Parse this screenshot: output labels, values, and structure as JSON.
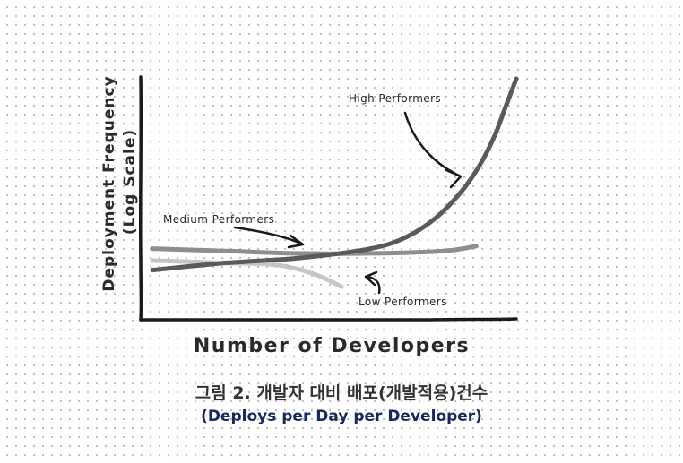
{
  "caption": {
    "title": "그림 2. 개발자 대비 배포(개발적용)건수",
    "subtitle": "(Deploys per Day per Developer)"
  },
  "colors": {
    "axis": "#1a1a1a",
    "high": "#5a5a5a",
    "medium": "#8e8e8e",
    "low": "#c6c6c6",
    "subtitle": "#17275f"
  },
  "chart_data": {
    "type": "line",
    "xlabel": "Number of Developers",
    "ylabel": "Deployment Frequency",
    "ylabel_note": "(Log Scale)",
    "grid": false,
    "legend": "none",
    "series": [
      {
        "name": "High Performers",
        "color": "#5a5a5a",
        "shape": "exponential rise",
        "x": [
          0.0,
          0.2,
          0.4,
          0.6,
          0.7,
          0.78,
          0.85,
          0.9,
          0.94,
          0.97,
          1.0
        ],
        "y": [
          0.2,
          0.23,
          0.25,
          0.29,
          0.34,
          0.42,
          0.53,
          0.64,
          0.76,
          0.88,
          1.0
        ]
      },
      {
        "name": "Medium Performers",
        "color": "#8e8e8e",
        "shape": "flat",
        "x": [
          0.0,
          0.2,
          0.4,
          0.6,
          0.8,
          0.89
        ],
        "y": [
          0.29,
          0.28,
          0.27,
          0.27,
          0.28,
          0.3
        ]
      },
      {
        "name": "Low Performers",
        "color": "#c6c6c6",
        "shape": "declining",
        "x": [
          0.0,
          0.2,
          0.35,
          0.45,
          0.52
        ],
        "y": [
          0.24,
          0.23,
          0.22,
          0.18,
          0.13
        ]
      }
    ]
  }
}
